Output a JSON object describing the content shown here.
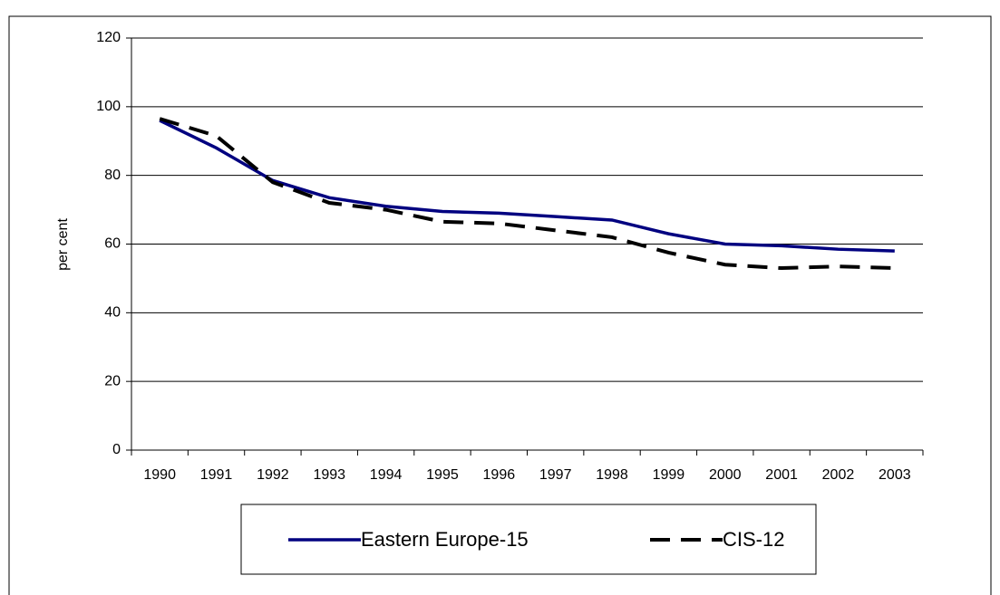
{
  "chart_data": {
    "type": "line",
    "y_label": "per cent",
    "categories": [
      "1990",
      "1991",
      "1992",
      "1993",
      "1994",
      "1995",
      "1996",
      "1997",
      "1998",
      "1999",
      "2000",
      "2001",
      "2002",
      "2003"
    ],
    "series": [
      {
        "name": "Eastern Europe-15",
        "color": "#000080",
        "dashed": false,
        "values": [
          96,
          88,
          78.5,
          73.5,
          71,
          69.5,
          69,
          68,
          67,
          63,
          60,
          59.5,
          58.5,
          58
        ]
      },
      {
        "name": "CIS-12",
        "color": "#000000",
        "dashed": true,
        "values": [
          96.5,
          91.5,
          78,
          72,
          70,
          66.5,
          66,
          64,
          62,
          57.5,
          54,
          53,
          53.5,
          53
        ]
      }
    ],
    "ylim": [
      0,
      120
    ],
    "yticks": [
      0,
      20,
      40,
      60,
      80,
      100,
      120
    ],
    "grid": true
  }
}
